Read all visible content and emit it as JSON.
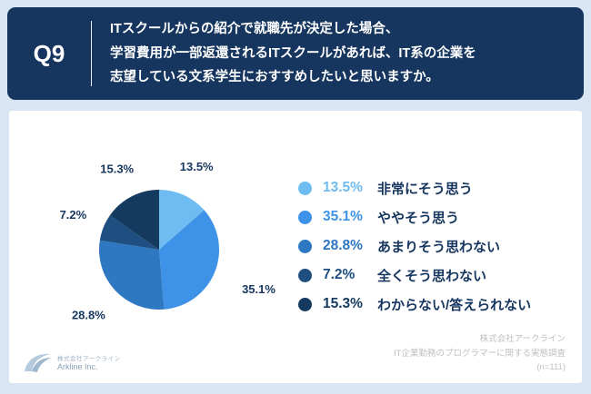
{
  "header": {
    "question_number": "Q9",
    "question_lines": [
      "ITスクールからの紹介で就職先が決定した場合、",
      "学習費用が一部返還されるITスクールがあれば、IT系の企業を",
      "志望している文系学生におすすめしたいと思いますか。"
    ]
  },
  "chart_data": {
    "type": "pie",
    "title": "",
    "categories": [
      "非常にそう思う",
      "ややそう思う",
      "あまりそう思わない",
      "全くそう思わない",
      "わからない/答えられない"
    ],
    "values": [
      13.5,
      35.1,
      28.8,
      7.2,
      15.3
    ],
    "value_labels": [
      "13.5%",
      "35.1%",
      "28.8%",
      "7.2%",
      "15.3%"
    ],
    "colors": [
      "#6FBCF2",
      "#3E93E8",
      "#2E78C2",
      "#1E4F80",
      "#143A5F"
    ],
    "start_angle_deg": 0,
    "direction": "clockwise",
    "legend_position": "right"
  },
  "footer": {
    "lines": [
      "株式会社アークライン",
      "IT企業勤務のプログラマーに関する実態調査",
      "(n=111)"
    ]
  },
  "logo": {
    "company_jp": "株式会社アークライン",
    "company_en": "Arkline Inc."
  }
}
